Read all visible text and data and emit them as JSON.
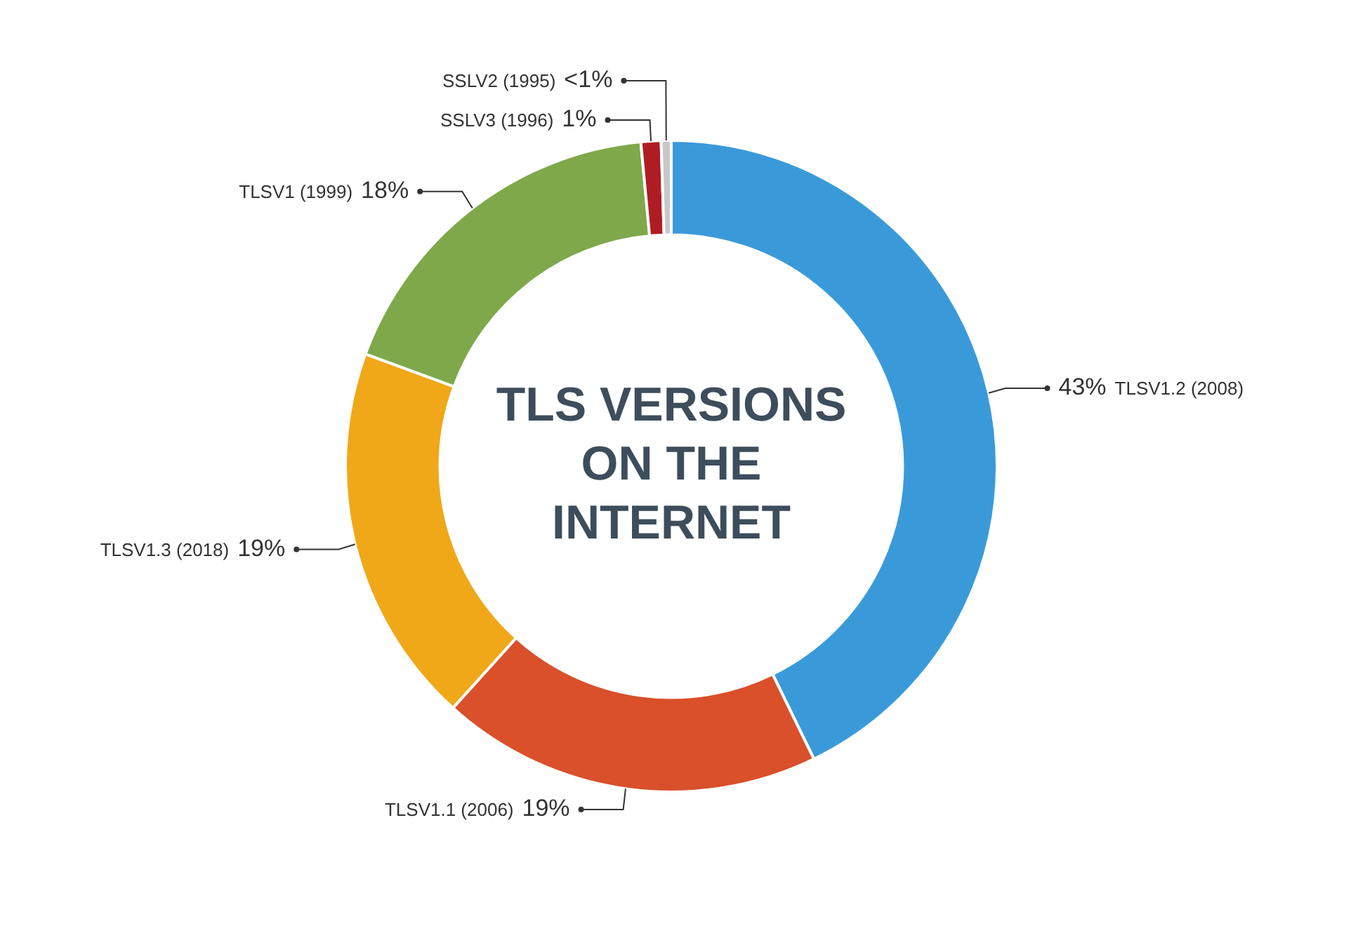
{
  "chart_data": {
    "type": "donut",
    "title": "TLS VERSIONS ON THE INTERNET",
    "categories": [
      "TLSV1.2 (2008)",
      "TLSV1.1 (2006)",
      "TLSV1.3 (2018)",
      "TLSV1 (1999)",
      "SSLV3 (1996)",
      "SSLV2 (1995)"
    ],
    "values": [
      43,
      19,
      19,
      18,
      1,
      0.5
    ],
    "value_labels": [
      "43%",
      "19%",
      "19%",
      "18%",
      "1%",
      "<1%"
    ],
    "colors": [
      "#3a9ad9",
      "#d9502a",
      "#f0a818",
      "#7ea84a",
      "#b01c24",
      "#c8c8c8"
    ]
  }
}
